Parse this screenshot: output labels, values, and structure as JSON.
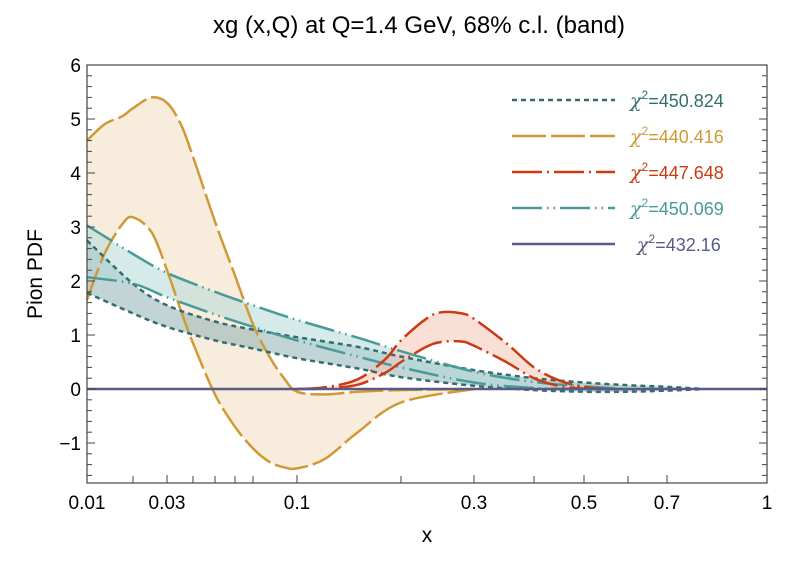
{
  "chart_data": {
    "type": "line",
    "title": "xg (x,Q) at Q=1.4 GeV, 68% c.l. (band)",
    "xlabel": "x",
    "ylabel": "Pion PDF",
    "xscale": "log-like",
    "xlim": [
      0.01,
      1
    ],
    "ylim": [
      -1.74,
      6
    ],
    "x_ticks": [
      {
        "value": 0.01,
        "label": "0.01"
      },
      {
        "value": 0.03,
        "label": "0.03"
      },
      {
        "value": 0.1,
        "label": "0.1"
      },
      {
        "value": 0.3,
        "label": "0.3"
      },
      {
        "value": 0.5,
        "label": "0.5"
      },
      {
        "value": 0.7,
        "label": "0.7"
      },
      {
        "value": 1,
        "label": "1"
      }
    ],
    "x_minor_ticks": [
      0.02,
      0.04,
      0.05,
      0.06,
      0.07,
      0.2,
      0.4,
      0.6
    ],
    "y_ticks": [
      {
        "value": 6,
        "label": "6"
      },
      {
        "value": 5,
        "label": "5"
      },
      {
        "value": 4,
        "label": "4"
      },
      {
        "value": 3,
        "label": "3"
      },
      {
        "value": 2,
        "label": "2"
      },
      {
        "value": 1,
        "label": "1"
      },
      {
        "value": 0,
        "label": "0"
      },
      {
        "value": -1,
        "label": "−1"
      }
    ],
    "legend_position": "top-right",
    "series": [
      {
        "name": "χ²=450.824",
        "legend_prefix": "χ",
        "legend_sup": "2",
        "legend_value": "=450.824",
        "color": "#336e6e",
        "fill": "#8fb0b4",
        "dash": "dashed",
        "x": [
          0.01,
          0.02,
          0.03,
          0.05,
          0.07,
          0.1,
          0.15,
          0.2,
          0.3,
          0.4,
          0.5,
          0.6,
          0.7,
          0.8
        ],
        "upper": [
          2.75,
          1.95,
          1.55,
          1.25,
          1.1,
          0.96,
          0.78,
          0.6,
          0.35,
          0.2,
          0.12,
          0.07,
          0.04,
          0.0
        ],
        "lower": [
          1.78,
          1.4,
          1.15,
          0.9,
          0.75,
          0.57,
          0.38,
          0.22,
          0.06,
          -0.02,
          -0.05,
          -0.05,
          -0.03,
          0.0
        ]
      },
      {
        "name": "χ²=440.416",
        "legend_prefix": "χ",
        "legend_sup": "2",
        "legend_value": "=440.416",
        "color": "#cf9a36",
        "fill": "#f3dfbf",
        "dash": "long-dashed",
        "x": [
          0.01,
          0.013,
          0.017,
          0.02,
          0.025,
          0.03,
          0.035,
          0.04,
          0.05,
          0.06,
          0.07,
          0.08,
          0.09,
          0.1,
          0.12,
          0.15,
          0.2,
          0.3
        ],
        "upper": [
          4.6,
          4.9,
          5.05,
          5.2,
          5.4,
          5.3,
          4.9,
          4.3,
          3.1,
          2.1,
          1.2,
          0.6,
          0.2,
          -0.05,
          -0.1,
          -0.05,
          -0.02,
          0.0
        ],
        "lower": [
          1.65,
          2.5,
          3.05,
          3.18,
          2.9,
          2.2,
          1.45,
          0.85,
          -0.1,
          -0.7,
          -1.1,
          -1.35,
          -1.45,
          -1.47,
          -1.3,
          -0.8,
          -0.25,
          0.0
        ]
      },
      {
        "name": "χ²=447.648",
        "legend_prefix": "χ",
        "legend_sup": "2",
        "legend_value": "=447.648",
        "color": "#cc3a11",
        "fill": "#f5c4b6",
        "dash": "dash-dot",
        "x": [
          0.1,
          0.12,
          0.15,
          0.18,
          0.2,
          0.23,
          0.25,
          0.28,
          0.3,
          0.35,
          0.4,
          0.45,
          0.5,
          0.55
        ],
        "upper": [
          0.0,
          0.03,
          0.18,
          0.55,
          0.9,
          1.3,
          1.42,
          1.4,
          1.3,
          0.85,
          0.4,
          0.15,
          0.04,
          0.0
        ],
        "lower": [
          0.0,
          0.01,
          0.08,
          0.3,
          0.5,
          0.78,
          0.87,
          0.88,
          0.8,
          0.5,
          0.2,
          0.05,
          0.01,
          0.0
        ]
      },
      {
        "name": "χ²=450.069",
        "legend_prefix": "χ",
        "legend_sup": "2",
        "legend_value": "=450.069",
        "color": "#4a9a9a",
        "fill": "#b5d8d8",
        "dash": "dash-dot-dot",
        "x": [
          0.01,
          0.02,
          0.03,
          0.05,
          0.07,
          0.1,
          0.15,
          0.2,
          0.3,
          0.4,
          0.5,
          0.6
        ],
        "upper": [
          3.03,
          2.5,
          2.15,
          1.8,
          1.55,
          1.28,
          0.95,
          0.7,
          0.32,
          0.13,
          0.05,
          0.0
        ],
        "lower": [
          2.07,
          1.95,
          1.7,
          1.38,
          1.15,
          0.9,
          0.6,
          0.4,
          0.12,
          0.02,
          0.0,
          0.0
        ]
      },
      {
        "name": "χ²=432.16",
        "legend_prefix": "χ",
        "legend_sup": "2",
        "legend_value": "=432.16",
        "color": "#5a5a88",
        "fill": "none",
        "dash": "solid",
        "x": [
          0.01,
          1
        ],
        "upper": [
          0.0,
          0.0
        ],
        "lower": [
          0.0,
          0.0
        ]
      }
    ]
  }
}
